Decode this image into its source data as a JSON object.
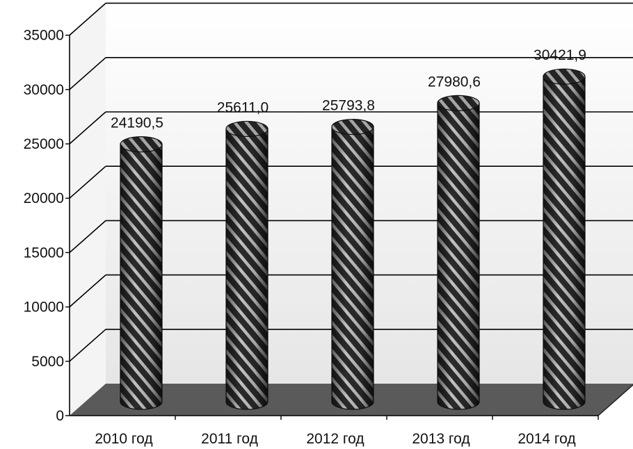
{
  "chart_data": {
    "type": "bar",
    "style": "3d-cylinder",
    "categories": [
      "2010 год",
      "2011 год",
      "2012 год",
      "2013 год",
      "2014 год"
    ],
    "values": [
      24190.5,
      25611.0,
      25793.8,
      27980.6,
      30421.9
    ],
    "data_labels": [
      "24190,5",
      "25611,0",
      "25793,8",
      "27980,6",
      "30421,9"
    ],
    "y_ticks": [
      "0",
      "5000",
      "10000",
      "15000",
      "20000",
      "25000",
      "30000",
      "35000"
    ],
    "ylim": [
      0,
      35000
    ],
    "grid": true,
    "legend": "none",
    "title": "",
    "xlabel": "",
    "ylabel": ""
  },
  "colors": {
    "bar_fill": "#2b2b2b",
    "bar_stripe": "#bdbdbd",
    "floor": "#5a5a5a",
    "gridline": "#000000",
    "background_wall": "#f0f0f0"
  }
}
